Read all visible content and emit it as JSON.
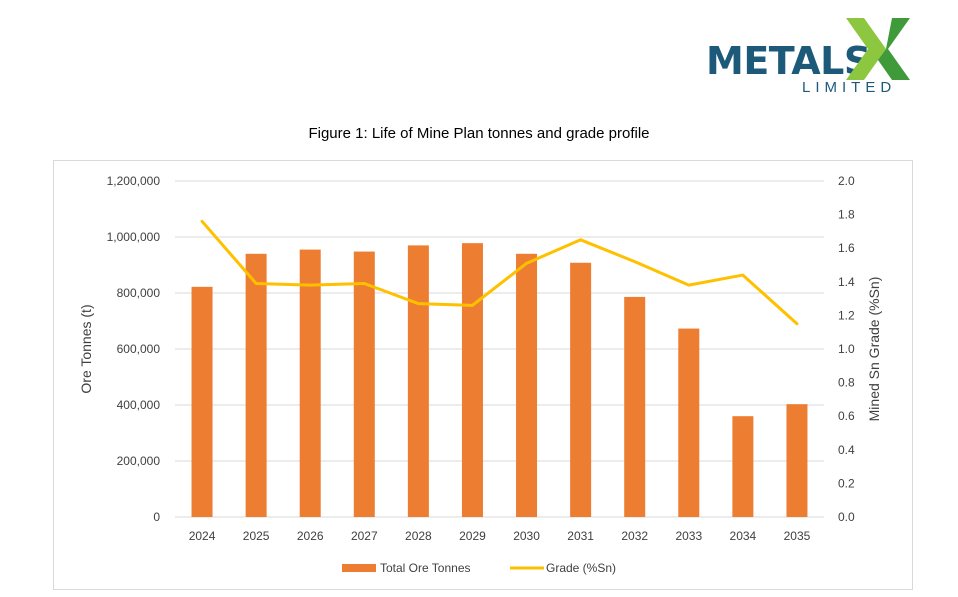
{
  "logo": {
    "word": "METALS",
    "sub": "LIMITED"
  },
  "figure_title": "Figure 1: Life of Mine Plan tonnes and grade profile",
  "colors": {
    "bar": "#ED7D31",
    "line": "#FFC000",
    "logo_blue": "#1d5a7a",
    "logo_green_light": "#8dc63f",
    "logo_green_dark": "#3f9a3a"
  },
  "chart_data": {
    "type": "bar",
    "title": "Figure 1: Life of Mine Plan tonnes and grade profile",
    "categories": [
      "2024",
      "2025",
      "2026",
      "2027",
      "2028",
      "2029",
      "2030",
      "2031",
      "2032",
      "2033",
      "2034",
      "2035"
    ],
    "series": [
      {
        "name": "Total Ore Tonnes",
        "type": "bar",
        "axis": "left",
        "values": [
          822000,
          940000,
          955000,
          948000,
          970000,
          978000,
          940000,
          908000,
          786000,
          673000,
          360000,
          403000
        ]
      },
      {
        "name": "Grade (%Sn)",
        "type": "line",
        "axis": "right",
        "values": [
          1.76,
          1.39,
          1.38,
          1.39,
          1.27,
          1.26,
          1.51,
          1.65,
          1.52,
          1.38,
          1.44,
          1.15
        ]
      }
    ],
    "ylabel": "Ore Tonnes (t)",
    "ylabel_right": "Mined Sn Grade (%Sn)",
    "ylim": [
      0,
      1200000
    ],
    "ylim_right": [
      0,
      2.0
    ],
    "yticks": [
      0,
      200000,
      400000,
      600000,
      800000,
      1000000,
      1200000
    ],
    "yticks_labels": [
      "0",
      "200,000",
      "400,000",
      "600,000",
      "800,000",
      "1,000,000",
      "1,200,000"
    ],
    "yticks_right_labels": [
      "0.0",
      "0.2",
      "0.4",
      "0.6",
      "0.8",
      "1.0",
      "1.2",
      "1.4",
      "1.6",
      "1.8",
      "2.0"
    ],
    "grid": true,
    "legend": "bottom"
  }
}
